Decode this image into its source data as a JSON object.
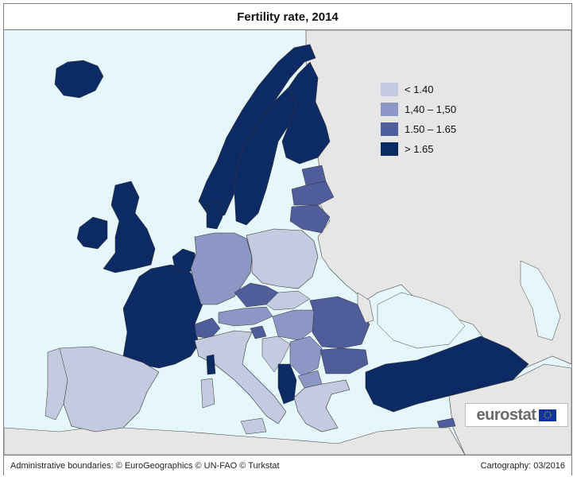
{
  "title": "Fertility rate, 2014",
  "legend": {
    "items": [
      {
        "label": "< 1.40",
        "color": "#c4cbe0"
      },
      {
        "label": "1,40 – 1,50",
        "color": "#8c97c5"
      },
      {
        "label": "1.50 – 1.65",
        "color": "#4f5d9b"
      },
      {
        "label": "> 1.65",
        "color": "#0c2a63"
      }
    ]
  },
  "footer": {
    "left": "Administrative boundaries: © EuroGeographics © UN-FAO © Turkstat",
    "right": "Cartography: 03/2016"
  },
  "logo": {
    "text": "eurostat"
  },
  "colors": {
    "sea": "#e6f7fb",
    "non_data_land": "#e6e6e6",
    "border": "#333333"
  }
}
